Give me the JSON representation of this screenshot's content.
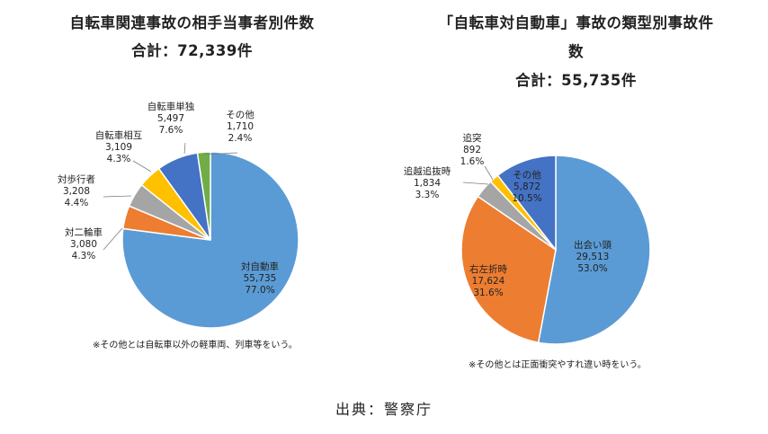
{
  "chart_data": [
    {
      "type": "pie",
      "title_lines": [
        "自転車関連事故の相手当事者別件数",
        "合計：72,339件"
      ],
      "slices": [
        {
          "name": "対自動車",
          "count": "55,735",
          "percent": "77.0%",
          "value": 55735,
          "color": "#5b9bd5"
        },
        {
          "name": "対二輪車",
          "count": "3,080",
          "percent": "4.3%",
          "value": 3080,
          "color": "#ed7d31"
        },
        {
          "name": "対歩行者",
          "count": "3,208",
          "percent": "4.4%",
          "value": 3208,
          "color": "#a5a5a5"
        },
        {
          "name": "自転車相互",
          "count": "3,109",
          "percent": "4.3%",
          "value": 3109,
          "color": "#ffc000"
        },
        {
          "name": "自転車単独",
          "count": "5,497",
          "percent": "7.6%",
          "value": 5497,
          "color": "#4472c4"
        },
        {
          "name": "その他",
          "count": "1,710",
          "percent": "2.4%",
          "value": 1710,
          "color": "#70ad47"
        }
      ],
      "note": "※その他とは自転車以外の軽車両、列車等をいう。"
    },
    {
      "type": "pie",
      "title_lines": [
        "「自転車対自動車」事故の類型別事故件",
        "数",
        "合計：55,735件"
      ],
      "slices": [
        {
          "name": "出会い頭",
          "count": "29,513",
          "percent": "53.0%",
          "value": 29513,
          "color": "#5b9bd5"
        },
        {
          "name": "右左折時",
          "count": "17,624",
          "percent": "31.6%",
          "value": 17624,
          "color": "#ed7d31"
        },
        {
          "name": "追越追抜時",
          "count": "1,834",
          "percent": "3.3%",
          "value": 1834,
          "color": "#a5a5a5"
        },
        {
          "name": "追突",
          "count": "892",
          "percent": "1.6%",
          "value": 892,
          "color": "#ffc000"
        },
        {
          "name": "その他",
          "count": "5,872",
          "percent": "10.5%",
          "value": 5872,
          "color": "#4472c4"
        }
      ],
      "note": "※その他とは正面衝突やすれ違い時をいう。"
    }
  ],
  "source": "出典：警察庁"
}
